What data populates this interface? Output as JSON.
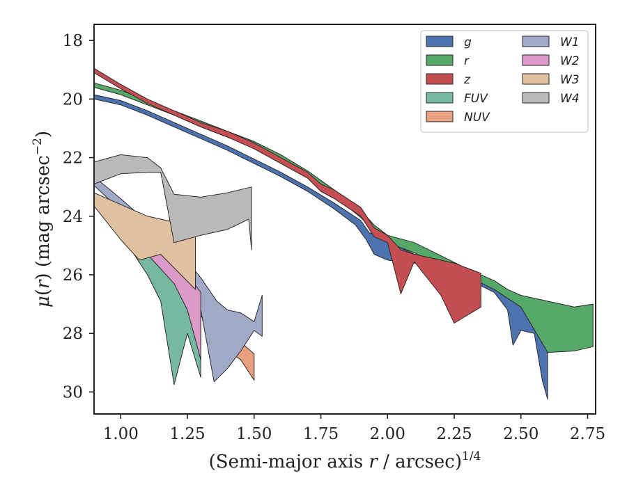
{
  "chart_data": {
    "type": "area",
    "xlabel_parts": [
      "(Semi-major axis ",
      "r",
      " / arcsec)",
      "1/4"
    ],
    "ylabel_parts": [
      "μ(",
      "r",
      ") (mag arcsec",
      "−2",
      ")"
    ],
    "xlim": [
      0.9,
      2.78
    ],
    "ylim": [
      30.75,
      17.45
    ],
    "xticks": [
      "1.00",
      "1.25",
      "1.50",
      "1.75",
      "2.00",
      "2.25",
      "2.50",
      "2.75"
    ],
    "yticks": [
      "18",
      "20",
      "22",
      "24",
      "26",
      "28",
      "30"
    ],
    "legend_position": "top-right",
    "series": [
      {
        "name": "g",
        "color": "#4c72b0",
        "upper": [
          [
            0.9,
            19.85
          ],
          [
            1.0,
            20.05
          ],
          [
            1.1,
            20.4
          ],
          [
            1.2,
            20.8
          ],
          [
            1.3,
            21.2
          ],
          [
            1.4,
            21.6
          ],
          [
            1.5,
            22.05
          ],
          [
            1.6,
            22.5
          ],
          [
            1.7,
            23.0
          ],
          [
            1.8,
            23.55
          ],
          [
            1.9,
            24.15
          ],
          [
            1.93,
            24.55
          ],
          [
            2.0,
            24.85
          ],
          [
            2.1,
            25.3
          ],
          [
            2.2,
            25.6
          ],
          [
            2.3,
            25.95
          ],
          [
            2.4,
            26.3
          ],
          [
            2.45,
            26.6
          ],
          [
            2.5,
            26.9
          ],
          [
            2.55,
            27.4
          ],
          [
            2.6,
            27.85
          ]
        ],
        "lower": [
          [
            0.9,
            20.0
          ],
          [
            1.0,
            20.2
          ],
          [
            1.1,
            20.55
          ],
          [
            1.2,
            20.95
          ],
          [
            1.3,
            21.35
          ],
          [
            1.4,
            21.75
          ],
          [
            1.5,
            22.2
          ],
          [
            1.6,
            22.65
          ],
          [
            1.7,
            23.15
          ],
          [
            1.8,
            23.75
          ],
          [
            1.88,
            24.3
          ],
          [
            1.92,
            24.8
          ],
          [
            1.95,
            25.3
          ],
          [
            2.0,
            25.5
          ],
          [
            2.1,
            25.6
          ],
          [
            2.2,
            25.85
          ],
          [
            2.3,
            26.15
          ],
          [
            2.4,
            26.6
          ],
          [
            2.45,
            27.2
          ],
          [
            2.47,
            28.4
          ],
          [
            2.5,
            27.9
          ],
          [
            2.55,
            28.0
          ],
          [
            2.58,
            29.6
          ],
          [
            2.6,
            30.25
          ]
        ]
      },
      {
        "name": "r",
        "color": "#55a868",
        "upper": [
          [
            0.9,
            19.45
          ],
          [
            1.0,
            19.7
          ],
          [
            1.1,
            20.05
          ],
          [
            1.2,
            20.4
          ],
          [
            1.3,
            20.75
          ],
          [
            1.4,
            21.1
          ],
          [
            1.5,
            21.45
          ],
          [
            1.6,
            21.9
          ],
          [
            1.7,
            22.45
          ],
          [
            1.8,
            23.1
          ],
          [
            1.9,
            23.8
          ],
          [
            1.95,
            24.3
          ],
          [
            2.0,
            24.65
          ],
          [
            2.1,
            24.9
          ],
          [
            2.2,
            25.35
          ],
          [
            2.3,
            25.8
          ],
          [
            2.4,
            26.2
          ],
          [
            2.45,
            26.5
          ],
          [
            2.5,
            26.7
          ],
          [
            2.6,
            26.9
          ],
          [
            2.7,
            27.1
          ],
          [
            2.77,
            27.0
          ]
        ],
        "lower": [
          [
            0.9,
            19.6
          ],
          [
            1.0,
            19.85
          ],
          [
            1.1,
            20.2
          ],
          [
            1.2,
            20.55
          ],
          [
            1.3,
            20.95
          ],
          [
            1.4,
            21.3
          ],
          [
            1.5,
            21.65
          ],
          [
            1.6,
            22.1
          ],
          [
            1.7,
            22.65
          ],
          [
            1.8,
            23.3
          ],
          [
            1.9,
            24.05
          ],
          [
            1.95,
            24.5
          ],
          [
            2.0,
            24.9
          ],
          [
            2.1,
            25.25
          ],
          [
            2.2,
            25.7
          ],
          [
            2.3,
            26.05
          ],
          [
            2.4,
            26.5
          ],
          [
            2.45,
            26.8
          ],
          [
            2.5,
            27.1
          ],
          [
            2.6,
            28.65
          ],
          [
            2.7,
            28.6
          ],
          [
            2.77,
            28.45
          ]
        ]
      },
      {
        "name": "z",
        "color": "#c44e52",
        "upper": [
          [
            0.9,
            18.95
          ],
          [
            1.0,
            19.5
          ],
          [
            1.1,
            20.0
          ],
          [
            1.2,
            20.4
          ],
          [
            1.3,
            20.8
          ],
          [
            1.4,
            21.1
          ],
          [
            1.5,
            21.5
          ],
          [
            1.6,
            22.0
          ],
          [
            1.7,
            22.5
          ],
          [
            1.75,
            22.9
          ],
          [
            1.8,
            23.1
          ],
          [
            1.9,
            23.7
          ],
          [
            1.95,
            24.4
          ],
          [
            2.0,
            24.65
          ],
          [
            2.05,
            25.15
          ],
          [
            2.1,
            25.3
          ],
          [
            2.2,
            25.5
          ],
          [
            2.25,
            25.6
          ],
          [
            2.35,
            25.95
          ]
        ],
        "lower": [
          [
            0.9,
            19.1
          ],
          [
            1.0,
            19.65
          ],
          [
            1.1,
            20.15
          ],
          [
            1.2,
            20.55
          ],
          [
            1.3,
            20.95
          ],
          [
            1.4,
            21.3
          ],
          [
            1.5,
            21.7
          ],
          [
            1.6,
            22.2
          ],
          [
            1.7,
            22.7
          ],
          [
            1.75,
            23.15
          ],
          [
            1.8,
            23.4
          ],
          [
            1.9,
            24.0
          ],
          [
            1.95,
            24.7
          ],
          [
            2.0,
            24.9
          ],
          [
            2.05,
            26.65
          ],
          [
            2.1,
            25.55
          ],
          [
            2.2,
            26.7
          ],
          [
            2.25,
            27.65
          ],
          [
            2.35,
            27.1
          ]
        ]
      },
      {
        "name": "FUV",
        "color": "#76b8a0",
        "upper": [
          [
            0.9,
            23.2
          ],
          [
            1.0,
            24.0
          ],
          [
            1.05,
            24.8
          ],
          [
            1.1,
            25.2
          ],
          [
            1.15,
            25.6
          ],
          [
            1.2,
            25.9
          ],
          [
            1.25,
            26.3
          ],
          [
            1.3,
            26.7
          ]
        ],
        "lower": [
          [
            0.9,
            23.4
          ],
          [
            1.0,
            24.4
          ],
          [
            1.05,
            25.3
          ],
          [
            1.1,
            26.0
          ],
          [
            1.15,
            26.9
          ],
          [
            1.2,
            29.75
          ],
          [
            1.25,
            28.0
          ],
          [
            1.3,
            29.5
          ]
        ]
      },
      {
        "name": "NUV",
        "color": "#e9a07f",
        "upper": [
          [
            0.9,
            23.3
          ],
          [
            1.0,
            24.1
          ],
          [
            1.1,
            24.8
          ],
          [
            1.2,
            25.6
          ],
          [
            1.3,
            26.5
          ],
          [
            1.4,
            27.5
          ],
          [
            1.45,
            28.3
          ],
          [
            1.5,
            28.7
          ]
        ],
        "lower": [
          [
            0.9,
            23.5
          ],
          [
            1.0,
            24.4
          ],
          [
            1.1,
            25.2
          ],
          [
            1.2,
            26.1
          ],
          [
            1.3,
            27.4
          ],
          [
            1.4,
            28.6
          ],
          [
            1.45,
            28.9
          ],
          [
            1.5,
            29.6
          ]
        ]
      },
      {
        "name": "W1",
        "color": "#a1a9c9",
        "upper": [
          [
            0.9,
            22.65
          ],
          [
            1.0,
            23.4
          ],
          [
            1.1,
            24.2
          ],
          [
            1.2,
            25.0
          ],
          [
            1.3,
            26.1
          ],
          [
            1.36,
            26.9
          ],
          [
            1.4,
            27.2
          ],
          [
            1.45,
            27.3
          ],
          [
            1.5,
            27.6
          ],
          [
            1.53,
            26.7
          ]
        ],
        "lower": [
          [
            0.9,
            22.95
          ],
          [
            1.0,
            23.8
          ],
          [
            1.1,
            24.7
          ],
          [
            1.2,
            25.6
          ],
          [
            1.3,
            27.2
          ],
          [
            1.35,
            29.65
          ],
          [
            1.4,
            29.2
          ],
          [
            1.45,
            28.6
          ],
          [
            1.5,
            27.9
          ],
          [
            1.53,
            28.1
          ]
        ]
      },
      {
        "name": "W2",
        "color": "#dc9ac9",
        "upper": [
          [
            0.9,
            23.3
          ],
          [
            1.0,
            24.0
          ],
          [
            1.1,
            24.8
          ],
          [
            1.2,
            25.6
          ],
          [
            1.25,
            26.0
          ],
          [
            1.3,
            26.6
          ]
        ],
        "lower": [
          [
            0.9,
            23.6
          ],
          [
            1.0,
            24.4
          ],
          [
            1.1,
            25.3
          ],
          [
            1.2,
            26.3
          ],
          [
            1.25,
            27.2
          ],
          [
            1.3,
            28.9
          ]
        ]
      },
      {
        "name": "W3",
        "color": "#dfc09f",
        "upper": [
          [
            0.9,
            23.2
          ],
          [
            1.0,
            23.6
          ],
          [
            1.1,
            24.0
          ],
          [
            1.2,
            24.2
          ],
          [
            1.28,
            24.4
          ]
        ],
        "lower": [
          [
            0.9,
            23.65
          ],
          [
            1.0,
            24.8
          ],
          [
            1.07,
            25.5
          ],
          [
            1.15,
            25.3
          ],
          [
            1.28,
            26.5
          ]
        ]
      },
      {
        "name": "W4",
        "color": "#b9b9b9",
        "upper": [
          [
            0.9,
            22.15
          ],
          [
            1.0,
            21.9
          ],
          [
            1.1,
            22.0
          ],
          [
            1.15,
            22.35
          ],
          [
            1.2,
            23.25
          ],
          [
            1.3,
            23.35
          ],
          [
            1.4,
            23.2
          ],
          [
            1.49,
            23.0
          ]
        ],
        "lower": [
          [
            0.9,
            22.9
          ],
          [
            1.0,
            22.55
          ],
          [
            1.1,
            22.5
          ],
          [
            1.15,
            22.5
          ],
          [
            1.2,
            24.9
          ],
          [
            1.3,
            24.65
          ],
          [
            1.4,
            24.45
          ],
          [
            1.48,
            24.1
          ],
          [
            1.49,
            25.15
          ]
        ]
      }
    ]
  }
}
